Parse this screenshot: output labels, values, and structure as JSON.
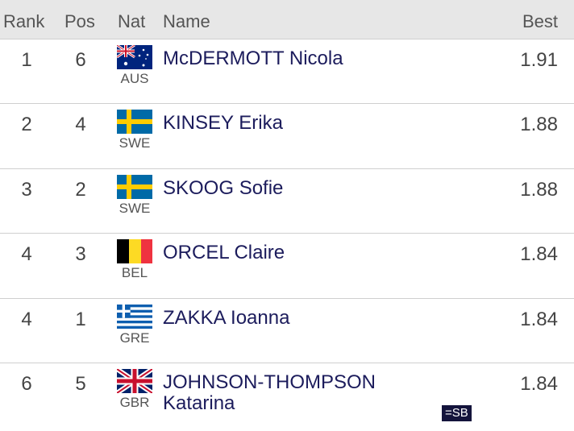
{
  "table": {
    "header": [
      "Rank",
      "Pos",
      "Nat",
      "Name",
      "Best"
    ],
    "rows": [
      {
        "rank": "1",
        "pos": "6",
        "nat": "AUS",
        "name": "McDERMOTT Nicola",
        "best": "1.91"
      },
      {
        "rank": "2",
        "pos": "4",
        "nat": "SWE",
        "name": "KINSEY Erika",
        "best": "1.88"
      },
      {
        "rank": "3",
        "pos": "2",
        "nat": "SWE",
        "name": "SKOOG Sofie",
        "best": "1.88"
      },
      {
        "rank": "4",
        "pos": "3",
        "nat": "BEL",
        "name": "ORCEL Claire",
        "best": "1.84"
      },
      {
        "rank": "4",
        "pos": "1",
        "nat": "GRE",
        "name": "ZAKKA Ioanna",
        "best": "1.84"
      },
      {
        "rank": "6",
        "pos": "5",
        "nat": "GBR",
        "name": "JOHNSON-THOMPSON Katarina",
        "best": "1.84",
        "note": "=SB"
      }
    ]
  }
}
